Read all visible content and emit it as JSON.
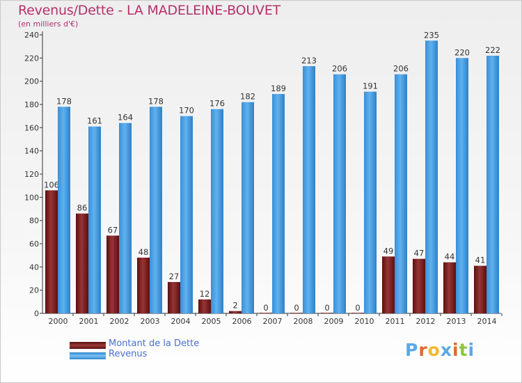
{
  "chart_data": {
    "type": "bar",
    "title": "Revenus/Dette - LA MADELEINE-BOUVET",
    "subtitle": "(en milliers d'€)",
    "categories": [
      "2000",
      "2001",
      "2002",
      "2003",
      "2004",
      "2005",
      "2006",
      "2007",
      "2008",
      "2009",
      "2010",
      "2011",
      "2012",
      "2013",
      "2014"
    ],
    "series": [
      {
        "name": "Montant de la Dette",
        "color": "#7a1c1c",
        "values": [
          106,
          86,
          67,
          48,
          27,
          12,
          2,
          0,
          0,
          0,
          0,
          49,
          47,
          44,
          41
        ]
      },
      {
        "name": "Revenus",
        "color": "#4aa3e6",
        "values": [
          178,
          161,
          164,
          178,
          170,
          176,
          182,
          189,
          213,
          206,
          191,
          206,
          235,
          220,
          222
        ]
      }
    ],
    "ylim": [
      0,
      240
    ],
    "yticks": [
      0,
      20,
      40,
      60,
      80,
      100,
      120,
      140,
      160,
      180,
      200,
      220,
      240
    ],
    "grid": false,
    "legend_position": "bottom-left"
  },
  "legend": {
    "items": [
      {
        "label": "Montant de la Dette"
      },
      {
        "label": "Revenus"
      }
    ]
  },
  "logo": {
    "letters": [
      "P",
      "r",
      "o",
      "x",
      "i",
      "t",
      "i"
    ],
    "colors": [
      "#5aa9e6",
      "#e06a2c",
      "#f2b82e",
      "#5aa9e6",
      "#e06a2c",
      "#8cc63f",
      "#5aa9e6"
    ]
  }
}
